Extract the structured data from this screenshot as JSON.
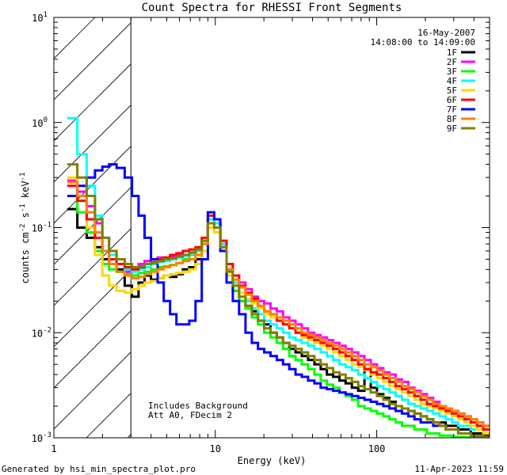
{
  "chart_data": {
    "type": "line",
    "title": "Count Spectra for RHESSI Front Segments",
    "xlabel": "Energy (keV)",
    "ylabel": "counts cm-2 s-1 keV-1",
    "xscale": "log",
    "yscale": "log",
    "xlim": [
      1,
      500
    ],
    "ylim": [
      0.001,
      10
    ],
    "x_ticks": [
      {
        "value": 1,
        "label": "1"
      },
      {
        "value": 10,
        "label": "10"
      },
      {
        "value": 100,
        "label": "100"
      }
    ],
    "y_ticks": [
      {
        "value": 10,
        "base": "10",
        "exp": "1"
      },
      {
        "value": 1,
        "base": "10",
        "exp": "0"
      },
      {
        "value": 0.1,
        "base": "10",
        "exp": "-1"
      },
      {
        "value": 0.01,
        "base": "10",
        "exp": "-2"
      },
      {
        "value": 0.001,
        "base": "10",
        "exp": "-3"
      }
    ],
    "hatched_region": {
      "x_from": 1,
      "x_to": 3
    },
    "date": "16-May-2007",
    "time_range": "14:08:00 to 14:09:00",
    "annotations": [
      "Includes Background",
      "Att A0, FDecim 2"
    ],
    "legend_position": "top-right",
    "energy_bins": [
      1.3,
      1.5,
      1.7,
      1.9,
      2.1,
      2.3,
      2.6,
      2.9,
      3.2,
      3.5,
      3.8,
      4.2,
      4.6,
      5.0,
      5.5,
      6.0,
      6.6,
      7.2,
      7.9,
      8.6,
      9.4,
      10.3,
      11.2,
      12.3,
      13.4,
      14.7,
      16.1,
      17.6,
      19.2,
      21.0,
      23.0,
      25.1,
      27.5,
      30.0,
      32.8,
      35.9,
      39.3,
      43.0,
      47.0,
      51.3,
      56.2,
      61.4,
      67.1,
      73.4,
      80.3,
      87.8,
      96.0,
      105,
      115,
      125,
      137,
      150,
      164,
      179,
      196,
      214,
      234,
      256,
      280,
      306,
      334,
      366,
      400,
      437,
      478
    ],
    "series": [
      {
        "name": "1F",
        "color": "#000000",
        "values": [
          0.15,
          0.1,
          0.08,
          0.065,
          0.05,
          0.045,
          0.04,
          0.028,
          0.022,
          0.03,
          0.035,
          0.032,
          0.033,
          0.035,
          0.034,
          0.036,
          0.04,
          0.042,
          0.05,
          0.07,
          0.12,
          0.11,
          0.07,
          0.04,
          0.025,
          0.02,
          0.018,
          0.016,
          0.013,
          0.012,
          0.01,
          0.009,
          0.008,
          0.007,
          0.0065,
          0.006,
          0.0055,
          0.005,
          0.0045,
          0.004,
          0.0038,
          0.0035,
          0.0033,
          0.003,
          0.0028,
          0.0045,
          0.003,
          0.0026,
          0.0024,
          0.0022,
          0.002,
          0.0019,
          0.0018,
          0.0017,
          0.0016,
          0.0015,
          0.0014,
          0.0014,
          0.0013,
          0.0013,
          0.0012,
          0.0012,
          0.0011,
          0.0011,
          0.00105
        ]
      },
      {
        "name": "2F",
        "color": "#ff00ff",
        "values": [
          0.28,
          0.22,
          0.16,
          0.11,
          0.08,
          0.06,
          0.045,
          0.038,
          0.04,
          0.045,
          0.048,
          0.05,
          0.052,
          0.05,
          0.053,
          0.055,
          0.054,
          0.058,
          0.06,
          0.075,
          0.11,
          0.1,
          0.07,
          0.045,
          0.035,
          0.03,
          0.026,
          0.022,
          0.02,
          0.019,
          0.017,
          0.016,
          0.014,
          0.013,
          0.012,
          0.011,
          0.01,
          0.0095,
          0.009,
          0.0085,
          0.008,
          0.0075,
          0.007,
          0.0065,
          0.006,
          0.0055,
          0.005,
          0.0046,
          0.0042,
          0.004,
          0.0036,
          0.0034,
          0.003,
          0.0028,
          0.0026,
          0.0024,
          0.0022,
          0.002,
          0.0019,
          0.0018,
          0.0017,
          0.0016,
          0.0015,
          0.0014,
          0.0013
        ]
      },
      {
        "name": "3F",
        "color": "#00ff00",
        "values": [
          0.2,
          0.14,
          0.09,
          0.06,
          0.045,
          0.04,
          0.038,
          0.036,
          0.035,
          0.037,
          0.038,
          0.04,
          0.042,
          0.043,
          0.044,
          0.046,
          0.05,
          0.055,
          0.06,
          0.07,
          0.1,
          0.09,
          0.06,
          0.035,
          0.025,
          0.02,
          0.017,
          0.014,
          0.012,
          0.01,
          0.009,
          0.008,
          0.007,
          0.006,
          0.0055,
          0.005,
          0.0045,
          0.004,
          0.0035,
          0.0032,
          0.003,
          0.0027,
          0.0025,
          0.0023,
          0.002,
          0.0019,
          0.0018,
          0.0017,
          0.0016,
          0.0015,
          0.0014,
          0.0013,
          0.0013,
          0.0012,
          0.0012,
          0.0011,
          0.0011,
          0.00105,
          0.00105,
          0.00102,
          0.00102,
          0.00101,
          0.00101,
          0.00101,
          0.00101
        ]
      },
      {
        "name": "4F",
        "color": "#00ffff",
        "values": [
          1.1,
          0.5,
          0.25,
          0.13,
          0.08,
          0.055,
          0.045,
          0.04,
          0.038,
          0.04,
          0.042,
          0.045,
          0.047,
          0.048,
          0.05,
          0.052,
          0.054,
          0.056,
          0.06,
          0.075,
          0.12,
          0.11,
          0.07,
          0.04,
          0.03,
          0.024,
          0.02,
          0.017,
          0.015,
          0.013,
          0.012,
          0.011,
          0.01,
          0.009,
          0.0085,
          0.008,
          0.0075,
          0.007,
          0.0065,
          0.006,
          0.0055,
          0.005,
          0.0047,
          0.0044,
          0.004,
          0.0037,
          0.0034,
          0.0031,
          0.0029,
          0.0027,
          0.0025,
          0.0023,
          0.0021,
          0.002,
          0.0019,
          0.0018,
          0.0017,
          0.0016,
          0.0015,
          0.0014,
          0.0013,
          0.0013,
          0.0012,
          0.0012,
          0.0011
        ]
      },
      {
        "name": "5F",
        "color": "#ffd700",
        "values": [
          0.3,
          0.18,
          0.1,
          0.055,
          0.035,
          0.028,
          0.025,
          0.024,
          0.026,
          0.028,
          0.03,
          0.031,
          0.033,
          0.035,
          0.036,
          0.037,
          0.038,
          0.04,
          0.045,
          0.06,
          0.1,
          0.09,
          0.06,
          0.035,
          0.028,
          0.024,
          0.021,
          0.019,
          0.017,
          0.015,
          0.014,
          0.013,
          0.012,
          0.011,
          0.01,
          0.009,
          0.0085,
          0.008,
          0.0075,
          0.007,
          0.0065,
          0.006,
          0.0055,
          0.005,
          0.0047,
          0.0044,
          0.004,
          0.0037,
          0.0034,
          0.0031,
          0.0029,
          0.0027,
          0.0025,
          0.0023,
          0.0021,
          0.002,
          0.0019,
          0.0018,
          0.0017,
          0.0016,
          0.0015,
          0.0014,
          0.0013,
          0.0012,
          0.0011
        ]
      },
      {
        "name": "6F",
        "color": "#ff0000",
        "values": [
          0.25,
          0.18,
          0.12,
          0.08,
          0.06,
          0.05,
          0.045,
          0.042,
          0.04,
          0.042,
          0.045,
          0.047,
          0.05,
          0.052,
          0.055,
          0.057,
          0.06,
          0.062,
          0.065,
          0.08,
          0.13,
          0.12,
          0.075,
          0.045,
          0.035,
          0.028,
          0.024,
          0.021,
          0.018,
          0.016,
          0.015,
          0.013,
          0.012,
          0.011,
          0.01,
          0.0095,
          0.009,
          0.0085,
          0.008,
          0.0075,
          0.007,
          0.0065,
          0.006,
          0.0055,
          0.005,
          0.0045,
          0.0042,
          0.004,
          0.0037,
          0.0034,
          0.0031,
          0.0029,
          0.0027,
          0.0025,
          0.0023,
          0.0021,
          0.002,
          0.0019,
          0.0018,
          0.0017,
          0.0016,
          0.0015,
          0.0014,
          0.0013,
          0.0012
        ]
      },
      {
        "name": "7F",
        "color": "#0000ff",
        "values": [
          0.2,
          0.25,
          0.3,
          0.35,
          0.38,
          0.4,
          0.37,
          0.3,
          0.2,
          0.13,
          0.08,
          0.05,
          0.03,
          0.02,
          0.015,
          0.012,
          0.012,
          0.013,
          0.02,
          0.05,
          0.14,
          0.12,
          0.06,
          0.03,
          0.02,
          0.015,
          0.01,
          0.008,
          0.007,
          0.0065,
          0.006,
          0.0055,
          0.005,
          0.0045,
          0.004,
          0.0038,
          0.0035,
          0.0033,
          0.003,
          0.0029,
          0.0028,
          0.0027,
          0.0026,
          0.0025,
          0.0024,
          0.0023,
          0.0022,
          0.0021,
          0.002,
          0.0019,
          0.0018,
          0.0017,
          0.0016,
          0.0015,
          0.0014,
          0.0014,
          0.0013,
          0.0013,
          0.0012,
          0.0012,
          0.0011,
          0.0011,
          0.00105,
          0.00105,
          0.00102
        ]
      },
      {
        "name": "8F",
        "color": "#ff8000",
        "values": [
          0.27,
          0.2,
          0.14,
          0.09,
          0.06,
          0.045,
          0.038,
          0.035,
          0.033,
          0.034,
          0.036,
          0.038,
          0.04,
          0.042,
          0.044,
          0.046,
          0.048,
          0.05,
          0.055,
          0.07,
          0.11,
          0.1,
          0.065,
          0.04,
          0.032,
          0.027,
          0.023,
          0.02,
          0.018,
          0.016,
          0.015,
          0.014,
          0.013,
          0.012,
          0.011,
          0.01,
          0.0095,
          0.009,
          0.0085,
          0.008,
          0.0075,
          0.007,
          0.0065,
          0.006,
          0.0055,
          0.005,
          0.0047,
          0.0044,
          0.004,
          0.0037,
          0.0034,
          0.0031,
          0.0029,
          0.0027,
          0.0025,
          0.0023,
          0.0021,
          0.002,
          0.0019,
          0.0018,
          0.0017,
          0.0016,
          0.0015,
          0.0014,
          0.0013
        ]
      },
      {
        "name": "9F",
        "color": "#808000",
        "values": [
          0.4,
          0.3,
          0.2,
          0.12,
          0.08,
          0.06,
          0.05,
          0.045,
          0.042,
          0.043,
          0.045,
          0.046,
          0.048,
          0.05,
          0.051,
          0.053,
          0.055,
          0.058,
          0.062,
          0.075,
          0.11,
          0.1,
          0.065,
          0.038,
          0.028,
          0.022,
          0.018,
          0.015,
          0.013,
          0.011,
          0.01,
          0.009,
          0.008,
          0.0075,
          0.007,
          0.0065,
          0.006,
          0.0055,
          0.005,
          0.0046,
          0.0042,
          0.004,
          0.0037,
          0.0034,
          0.0031,
          0.0029,
          0.0027,
          0.0025,
          0.0023,
          0.0021,
          0.002,
          0.0019,
          0.0018,
          0.0017,
          0.0016,
          0.0015,
          0.0014,
          0.0013,
          0.0012,
          0.0012,
          0.0011,
          0.0011,
          0.00105,
          0.00105,
          0.00102
        ]
      }
    ]
  },
  "footer": {
    "generated_by": "Generated by hsi_min_spectra_plot.pro",
    "timestamp": "11-Apr-2023 11:59"
  }
}
